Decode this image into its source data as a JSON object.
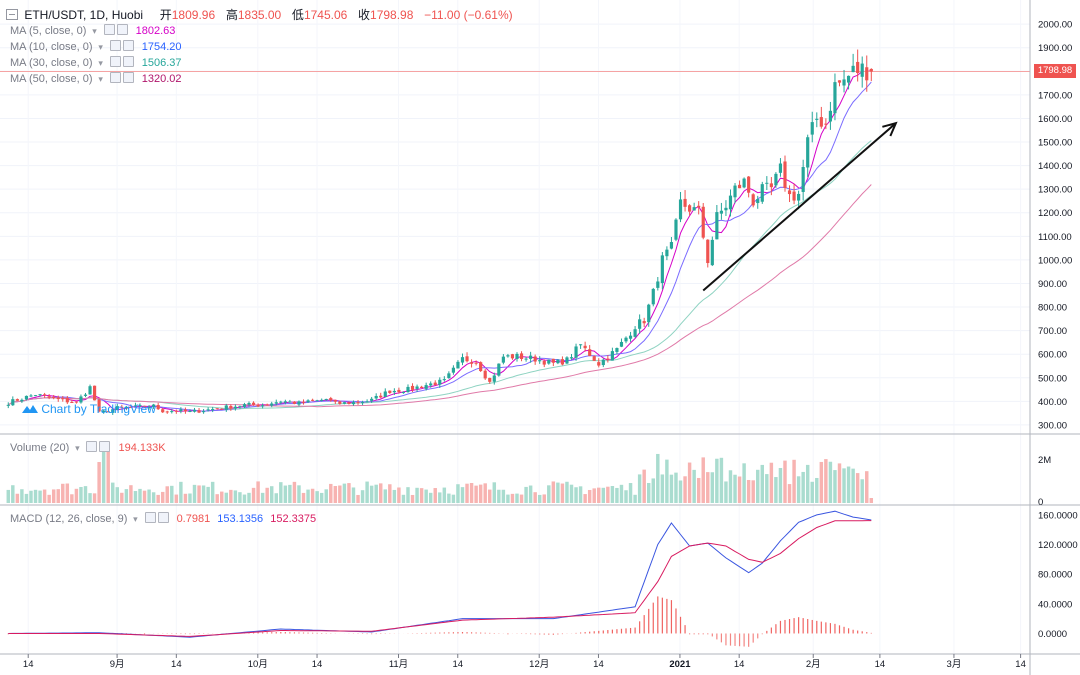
{
  "header": {
    "symbol": "ETH/USDT, 1D, Huobi",
    "open_label": "开",
    "open": "1809.96",
    "high_label": "高",
    "high": "1835.00",
    "low_label": "低",
    "low": "1745.06",
    "close_label": "收",
    "close": "1798.98",
    "change": "−11.00 (−0.61%)"
  },
  "indicators": [
    {
      "label": "MA (5, close, 0)",
      "value": "1802.63",
      "color": "#d500c8"
    },
    {
      "label": "MA (10, close, 0)",
      "value": "1754.20",
      "color": "#2962ff"
    },
    {
      "label": "MA (30, close, 0)",
      "value": "1506.37",
      "color": "#26c6a0"
    },
    {
      "label": "MA (50, close, 0)",
      "value": "1320.02",
      "color": "#b0166b"
    }
  ],
  "volume": {
    "label": "Volume (20)",
    "value": "194.133K"
  },
  "macd": {
    "label": "MACD (12, 26, close, 9)",
    "hist": "0.7981",
    "macd": "153.1356",
    "signal": "152.3375"
  },
  "watermark": "Chart by TradingView",
  "price_tag": "1798.98",
  "colors": {
    "up": "#26a69a",
    "down": "#ef5350",
    "up_vol": "#a9dccf",
    "down_vol": "#f7b3b1",
    "price_line": "#f5a3a3"
  },
  "chart_data": {
    "type": "candlestick",
    "price_axis": {
      "ticks": [
        300,
        400,
        500,
        600,
        700,
        800,
        900,
        1000,
        1100,
        1200,
        1300,
        1400,
        1500,
        1600,
        1700,
        1800,
        1900,
        2000
      ],
      "range": [
        270,
        2060
      ]
    },
    "volume_axis": {
      "ticks": [
        "0",
        "2M"
      ]
    },
    "macd_axis": {
      "ticks": [
        "0.0000",
        "40.0000",
        "80.0000",
        "120.0000",
        "160.0000"
      ],
      "range": [
        -25,
        172
      ]
    },
    "x_ticks": [
      "14",
      "9月",
      "14",
      "10月",
      "14",
      "11月",
      "14",
      "12月",
      "14",
      "2021",
      "14",
      "2月",
      "14",
      "3月",
      "14"
    ],
    "close_anchors": [
      [
        0,
        395
      ],
      [
        6,
        430
      ],
      [
        10,
        410
      ],
      [
        15,
        395
      ],
      [
        18,
        460
      ],
      [
        20,
        350
      ],
      [
        24,
        372
      ],
      [
        28,
        375
      ],
      [
        32,
        380
      ],
      [
        34,
        360
      ],
      [
        37,
        360
      ],
      [
        40,
        355
      ],
      [
        44,
        365
      ],
      [
        48,
        375
      ],
      [
        52,
        385
      ],
      [
        56,
        385
      ],
      [
        60,
        402
      ],
      [
        64,
        392
      ],
      [
        68,
        402
      ],
      [
        70,
        410
      ],
      [
        72,
        390
      ],
      [
        76,
        395
      ],
      [
        80,
        405
      ],
      [
        84,
        445
      ],
      [
        88,
        450
      ],
      [
        92,
        470
      ],
      [
        96,
        485
      ],
      [
        100,
        580
      ],
      [
        103,
        570
      ],
      [
        106,
        480
      ],
      [
        109,
        590
      ],
      [
        112,
        590
      ],
      [
        116,
        580
      ],
      [
        120,
        560
      ],
      [
        123,
        575
      ],
      [
        126,
        640
      ],
      [
        130,
        560
      ],
      [
        134,
        620
      ],
      [
        138,
        720
      ],
      [
        140,
        745
      ],
      [
        142,
        860
      ],
      [
        144,
        1000
      ],
      [
        146,
        1050
      ],
      [
        148,
        1240
      ],
      [
        150,
        1220
      ],
      [
        152,
        1200
      ],
      [
        154,
        1000
      ],
      [
        156,
        1180
      ],
      [
        158,
        1230
      ],
      [
        160,
        1300
      ],
      [
        162,
        1330
      ],
      [
        164,
        1250
      ],
      [
        166,
        1290
      ],
      [
        168,
        1300
      ],
      [
        170,
        1380
      ],
      [
        172,
        1270
      ],
      [
        174,
        1280
      ],
      [
        176,
        1500
      ],
      [
        178,
        1600
      ],
      [
        180,
        1580
      ],
      [
        182,
        1740
      ],
      [
        184,
        1760
      ],
      [
        186,
        1800
      ],
      [
        188,
        1810
      ],
      [
        190,
        1799
      ]
    ],
    "ma_anchors": {
      "ma5": [
        [
          185,
          1770
        ],
        [
          188,
          1795
        ],
        [
          190,
          1802.63
        ]
      ],
      "ma10": [
        [
          182,
          1660
        ],
        [
          186,
          1730
        ],
        [
          190,
          1754.2
        ]
      ],
      "ma30": [
        [
          190,
          1506.37
        ]
      ],
      "ma50": [
        [
          190,
          1320.02
        ]
      ]
    },
    "macd_anchors": {
      "macd": [
        [
          0,
          0
        ],
        [
          20,
          1
        ],
        [
          40,
          -5
        ],
        [
          60,
          6
        ],
        [
          80,
          2
        ],
        [
          100,
          20
        ],
        [
          120,
          20
        ],
        [
          138,
          36
        ],
        [
          143,
          120
        ],
        [
          146,
          149
        ],
        [
          150,
          118
        ],
        [
          154,
          122
        ],
        [
          158,
          102
        ],
        [
          163,
          82
        ],
        [
          166,
          95
        ],
        [
          170,
          125
        ],
        [
          174,
          150
        ],
        [
          178,
          160
        ],
        [
          182,
          165
        ],
        [
          186,
          157
        ],
        [
          190,
          153.1356
        ]
      ],
      "signal": [
        [
          0,
          0
        ],
        [
          20,
          0
        ],
        [
          40,
          -4
        ],
        [
          60,
          4
        ],
        [
          80,
          3
        ],
        [
          100,
          18
        ],
        [
          120,
          22
        ],
        [
          138,
          28
        ],
        [
          143,
          70
        ],
        [
          146,
          104
        ],
        [
          150,
          118
        ],
        [
          154,
          122
        ],
        [
          158,
          118
        ],
        [
          163,
          100
        ],
        [
          166,
          96
        ],
        [
          170,
          108
        ],
        [
          174,
          128
        ],
        [
          178,
          143
        ],
        [
          182,
          152
        ],
        [
          186,
          152
        ],
        [
          190,
          152.3375
        ]
      ]
    },
    "trend_arrow": {
      "from": [
        153,
        870
      ],
      "to": [
        180,
        1580
      ]
    }
  }
}
